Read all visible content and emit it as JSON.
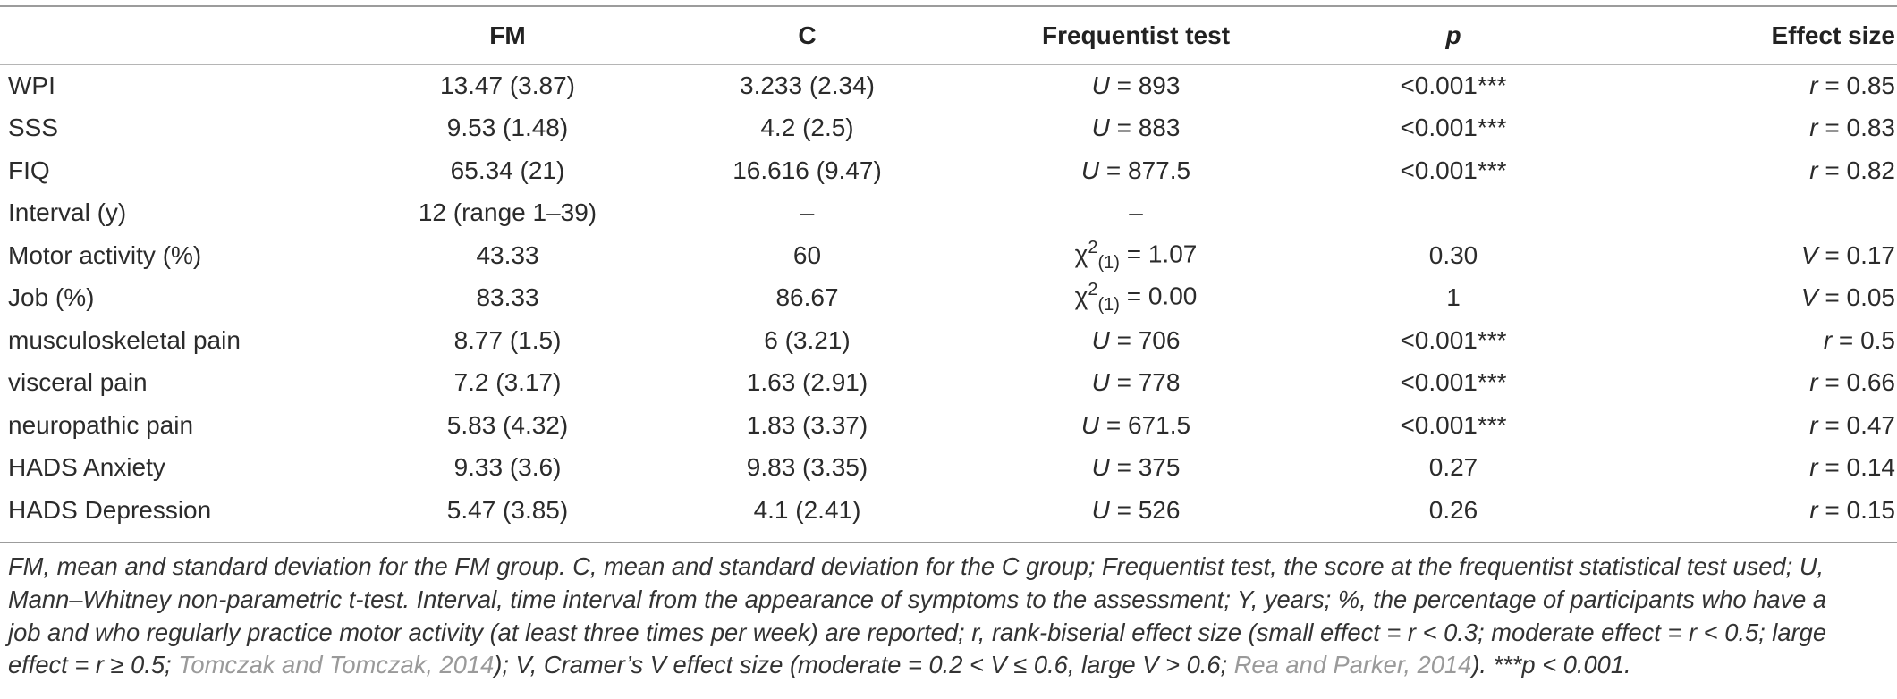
{
  "table": {
    "headers": [
      "",
      "FM",
      "C",
      "Frequentist test",
      "p",
      "Effect size"
    ],
    "rows": [
      {
        "label": "WPI",
        "fm": "13.47 (3.87)",
        "c": "3.233 (2.34)",
        "test_sym": "U",
        "test_op": " = ",
        "test_val": "893",
        "p": "<0.001***",
        "eff_sym": "r",
        "eff_val": " = 0.85"
      },
      {
        "label": "SSS",
        "fm": "9.53 (1.48)",
        "c": "4.2 (2.5)",
        "test_sym": "U",
        "test_op": " = ",
        "test_val": "883",
        "p": "<0.001***",
        "eff_sym": "r",
        "eff_val": " = 0.83"
      },
      {
        "label": "FIQ",
        "fm": "65.34 (21)",
        "c": "16.616 (9.47)",
        "test_sym": "U",
        "test_op": " = ",
        "test_val": "877.5",
        "p": "<0.001***",
        "eff_sym": "r",
        "eff_val": " = 0.82"
      },
      {
        "label": "Interval (y)",
        "fm": "12 (range 1–39)",
        "c": "–",
        "test_sym": "",
        "test_op": "",
        "test_val": "–",
        "p": "",
        "eff_sym": "",
        "eff_val": ""
      },
      {
        "label": "Motor activity (%)",
        "fm": "43.33",
        "c": "60",
        "test_sym": "χ",
        "test_sup": "2",
        "test_sub": "(1)",
        "test_op": " = ",
        "test_val": "1.07",
        "p": "0.30",
        "eff_sym": "V",
        "eff_val": " = 0.17"
      },
      {
        "label": "Job (%)",
        "fm": "83.33",
        "c": "86.67",
        "test_sym": "χ",
        "test_sup": "2",
        "test_sub": "(1)",
        "test_op": " = ",
        "test_val": "0.00",
        "p": "1",
        "eff_sym": "V",
        "eff_val": " = 0.05"
      },
      {
        "label": "musculoskeletal pain",
        "fm": "8.77 (1.5)",
        "c": "6 (3.21)",
        "test_sym": "U",
        "test_op": " = ",
        "test_val": "706",
        "p": "<0.001***",
        "eff_sym": "r",
        "eff_val": " = 0.5"
      },
      {
        "label": "visceral pain",
        "fm": "7.2 (3.17)",
        "c": "1.63 (2.91)",
        "test_sym": "U",
        "test_op": " = ",
        "test_val": "778",
        "p": "<0.001***",
        "eff_sym": "r",
        "eff_val": " = 0.66"
      },
      {
        "label": "neuropathic pain",
        "fm": "5.83 (4.32)",
        "c": "1.83 (3.37)",
        "test_sym": "U",
        "test_op": " = ",
        "test_val": "671.5",
        "p": "<0.001***",
        "eff_sym": "r",
        "eff_val": " = 0.47"
      },
      {
        "label": "HADS Anxiety",
        "fm": "9.33 (3.6)",
        "c": "9.83 (3.35)",
        "test_sym": "U",
        "test_op": " = ",
        "test_val": "375",
        "p": "0.27",
        "eff_sym": "r",
        "eff_val": " = 0.14"
      },
      {
        "label": "HADS Depression",
        "fm": "5.47 (3.85)",
        "c": "4.1 (2.41)",
        "test_sym": "U",
        "test_op": " = ",
        "test_val": "526",
        "p": "0.26",
        "eff_sym": "r",
        "eff_val": " = 0.15"
      }
    ]
  },
  "footnote": {
    "line1": "FM, mean and standard deviation for the FM group. C, mean and standard deviation for the C group; Frequentist test, the score at the frequentist statistical test used; U,",
    "line2": "Mann–Whitney non-parametric t-test. Interval, time interval from the appearance of symptoms to the assessment; Y, years; %, the percentage of participants who have a",
    "line3": "job and who regularly practice motor activity (at least three times per week) are reported; r, rank-biserial effect size (small effect = r < 0.3; moderate effect = r < 0.5; large",
    "line4_a": "effect = r ≥ 0.5; ",
    "line4_cite": "Tomczak and Tomczak, 2014",
    "line4_b": "); V, Cramer’s V effect size (moderate = 0.2 < V ≤ 0.6, large V > 0.6; ",
    "line5_cite": "Rea and Parker, 2014",
    "line5_b": "). ***p < 0.001."
  },
  "colors": {
    "text": "#2b2b2b",
    "rule": "#9c9c9c",
    "citation": "#9a9a9a"
  }
}
